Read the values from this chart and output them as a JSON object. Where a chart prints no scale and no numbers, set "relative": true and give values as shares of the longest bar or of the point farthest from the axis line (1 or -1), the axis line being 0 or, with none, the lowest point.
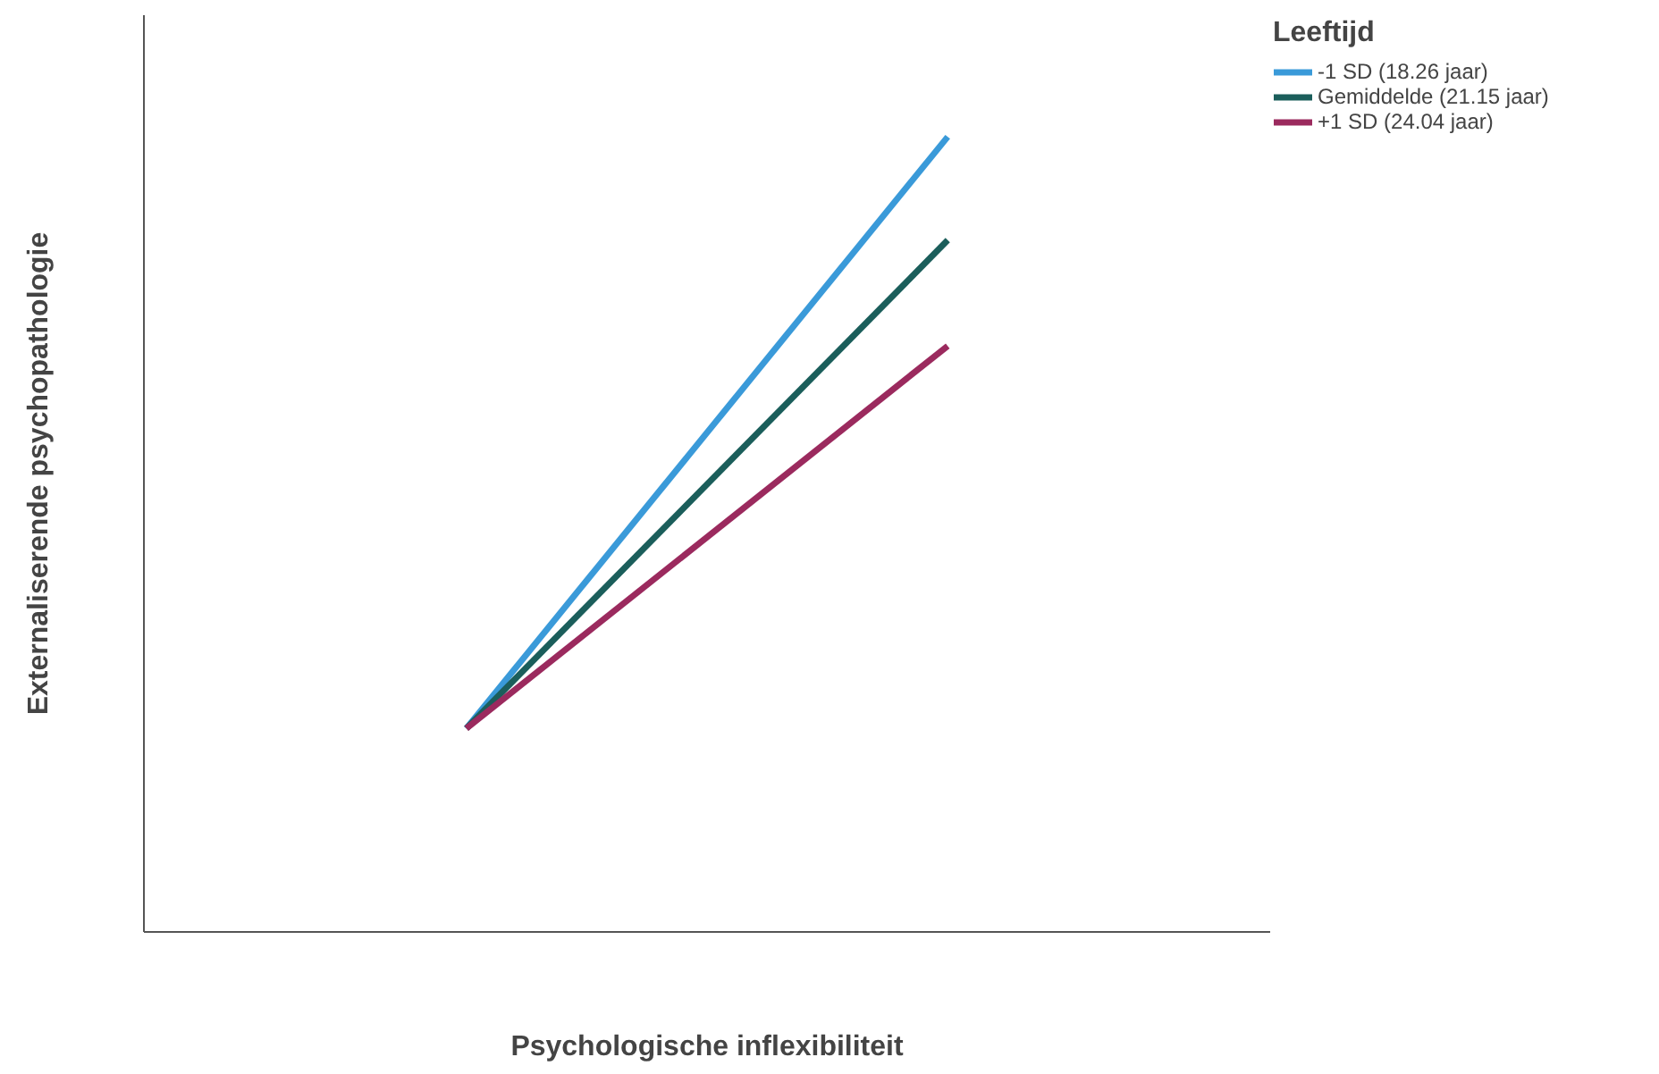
{
  "chart_data": {
    "type": "line",
    "xlabel": "Psychologische inflexibiliteit",
    "ylabel": "Externaliserende psychopathologie",
    "legend_title": "Leeftijd",
    "relative": true,
    "categories": [
      null,
      null
    ],
    "grid": false,
    "legend": "top right",
    "marker": "none",
    "line_style": "solid",
    "series": [
      {
        "name": "-1 SD (18.26 jaar)",
        "color": "#3a9ad9",
        "values": [
          0.256,
          1
        ]
      },
      {
        "name": "Gemiddelde (21.15 jaar)",
        "color": "#1b5e5b",
        "values": [
          0.256,
          0.87
        ]
      },
      {
        "name": "+1 SD (24.04 jaar)",
        "color": "#9b2a5e",
        "values": [
          0.256,
          0.737
        ]
      }
    ]
  }
}
